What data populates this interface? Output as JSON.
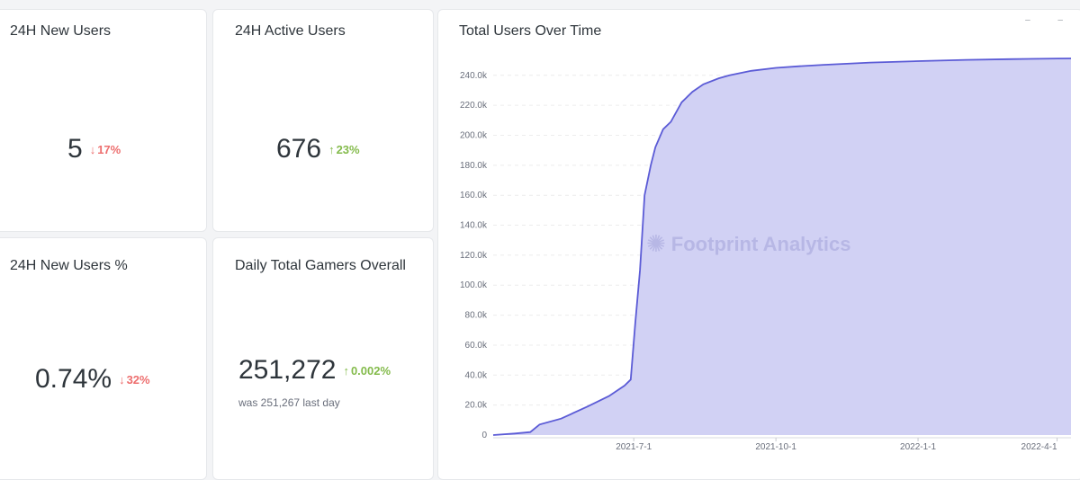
{
  "cards": {
    "new_users": {
      "title": "24H New Users",
      "value": "5",
      "delta": "17%",
      "direction": "down"
    },
    "active_users": {
      "title": "24H Active Users",
      "value": "676",
      "delta": "23%",
      "direction": "up"
    },
    "new_users_pct": {
      "title": "24H New Users %",
      "value": "0.74%",
      "delta": "32%",
      "direction": "down"
    },
    "total_gamers": {
      "title": "Daily Total Gamers Overall",
      "value": "251,272",
      "delta": "0.002%",
      "direction": "up",
      "sub": "was 251,267 last day"
    }
  },
  "chart": {
    "title": "Total Users Over Time",
    "watermark": "Footprint Analytics"
  },
  "icons": {
    "down": "arrow-down-icon",
    "up": "arrow-up-icon",
    "watermark": "footprint-logo-icon"
  },
  "colors": {
    "down": "#ed6e6e",
    "up": "#84bb4c",
    "area_fill": "#d1d1f4",
    "area_line": "#5b5bd6"
  },
  "chart_data": {
    "type": "area",
    "title": "Total Users Over Time",
    "xlabel": "",
    "ylabel": "",
    "x_ticks": [
      "2021-7-1",
      "2021-10-1",
      "2022-1-1",
      "2022-4-1"
    ],
    "y_ticks": [
      "0",
      "20.0k",
      "40.0k",
      "60.0k",
      "80.0k",
      "100.0k",
      "120.0k",
      "140.0k",
      "160.0k",
      "180.0k",
      "200.0k",
      "220.0k",
      "240.0k"
    ],
    "ylim": [
      0,
      250000
    ],
    "grid": true,
    "series": [
      {
        "x": [
          "2021-4-1",
          "2021-4-15",
          "2021-4-25",
          "2021-5-1",
          "2021-5-15",
          "2021-6-1",
          "2021-6-15",
          "2021-6-25",
          "2021-6-29",
          "2021-7-2",
          "2021-7-5",
          "2021-7-8",
          "2021-7-12",
          "2021-7-15",
          "2021-7-20",
          "2021-7-25",
          "2021-8-1",
          "2021-8-8",
          "2021-8-15",
          "2021-8-25",
          "2021-9-1",
          "2021-9-15",
          "2021-10-1",
          "2021-10-15",
          "2021-11-1",
          "2021-12-1",
          "2022-1-1",
          "2022-2-1",
          "2022-3-1",
          "2022-4-1",
          "2022-4-10"
        ],
        "values": [
          0,
          1000,
          2000,
          7000,
          11000,
          19000,
          26000,
          33000,
          37000,
          75000,
          110000,
          160000,
          180000,
          192000,
          204000,
          209000,
          222000,
          229000,
          234000,
          238000,
          240000,
          243000,
          245000,
          246000,
          247000,
          248500,
          249500,
          250300,
          250800,
          251200,
          251272
        ]
      }
    ]
  }
}
